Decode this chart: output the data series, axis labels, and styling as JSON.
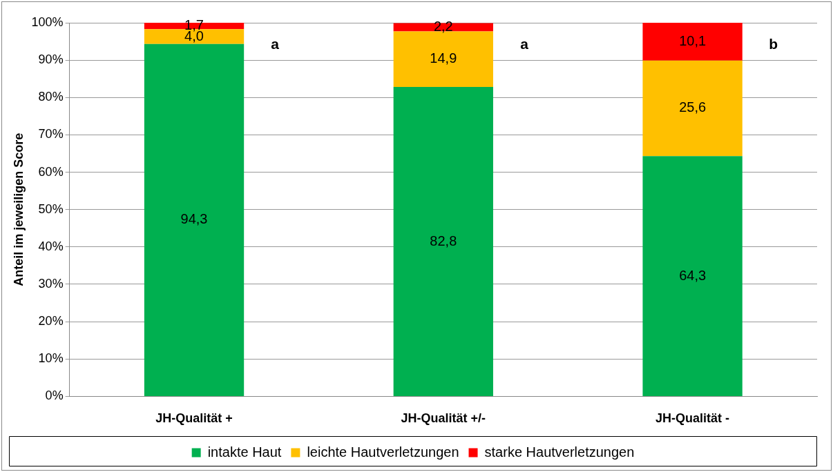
{
  "chart_data": {
    "type": "bar",
    "stacked": true,
    "ylabel": "Anteil im jeweiligen Score",
    "categories": [
      "JH-Qualität +",
      "JH-Qualität +/-",
      "JH-Qualität -"
    ],
    "series": [
      {
        "name": "intakte Haut",
        "color": "#00b050",
        "values": [
          94.3,
          82.8,
          64.3
        ],
        "value_labels": [
          "94,3",
          "82,8",
          "64,3"
        ]
      },
      {
        "name": "leichte Hautverletzungen",
        "color": "#ffc000",
        "values": [
          4.0,
          14.9,
          25.6
        ],
        "value_labels": [
          "4,0",
          "14,9",
          "25,6"
        ]
      },
      {
        "name": "starke Hautverletzungen",
        "color": "#ff0000",
        "values": [
          1.7,
          2.2,
          10.1
        ],
        "value_labels": [
          "1,7",
          "2,2",
          "10,1"
        ]
      }
    ],
    "ylim": [
      0,
      100
    ],
    "yticks": [
      {
        "value": 0,
        "label": "0%"
      },
      {
        "value": 10,
        "label": "10%"
      },
      {
        "value": 20,
        "label": "20%"
      },
      {
        "value": 30,
        "label": "30%"
      },
      {
        "value": 40,
        "label": "40%"
      },
      {
        "value": 50,
        "label": "50%"
      },
      {
        "value": 60,
        "label": "60%"
      },
      {
        "value": 70,
        "label": "70%"
      },
      {
        "value": 80,
        "label": "80%"
      },
      {
        "value": 90,
        "label": "90%"
      },
      {
        "value": 100,
        "label": "100%"
      }
    ],
    "grid": "y",
    "legend": "bottom",
    "annotations": [
      "a",
      "a",
      "b"
    ]
  }
}
